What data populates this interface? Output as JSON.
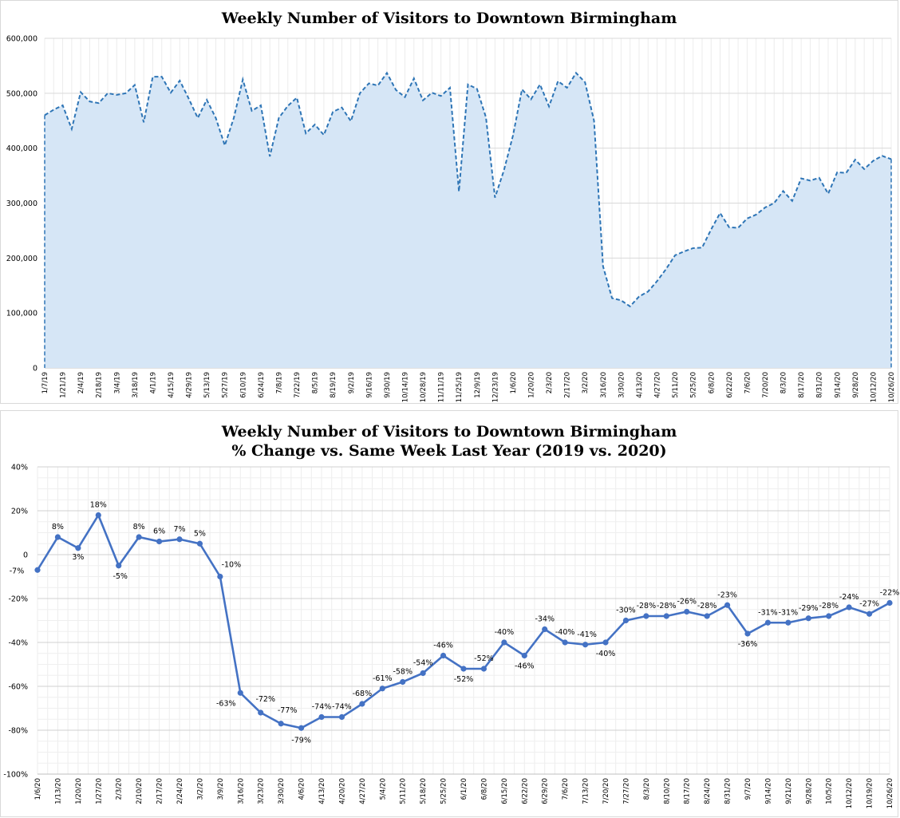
{
  "chart_data": [
    {
      "type": "area",
      "title": "Weekly Number of Visitors to Downtown Birmingham",
      "xlabel": "",
      "ylabel": "",
      "ylim": [
        0,
        600000
      ],
      "yticks": [
        0,
        100000,
        200000,
        300000,
        400000,
        500000,
        600000
      ],
      "ytick_labels": [
        "0",
        "100,000",
        "200,000",
        "300,000",
        "400,000",
        "500,000",
        "600,000"
      ],
      "grid": true,
      "line_style": "dashed",
      "line_color": "#2e75b6",
      "fill_color": "#d6e6f6",
      "x_tick_labels": [
        "1/7/19",
        "1/21/19",
        "2/4/19",
        "2/18/19",
        "3/4/19",
        "3/18/19",
        "4/1/19",
        "4/15/19",
        "4/29/19",
        "5/13/19",
        "5/27/19",
        "6/10/19",
        "6/24/19",
        "7/8/19",
        "7/22/19",
        "8/5/19",
        "8/19/19",
        "9/2/19",
        "9/16/19",
        "9/30/19",
        "10/14/19",
        "10/28/19",
        "11/11/19",
        "11/25/19",
        "12/9/19",
        "12/23/19",
        "1/6/20",
        "1/20/20",
        "2/3/20",
        "2/17/20",
        "3/2/20",
        "3/16/20",
        "3/30/20",
        "4/13/20",
        "4/27/20",
        "5/11/20",
        "5/25/20",
        "6/8/20",
        "6/22/20",
        "7/6/20",
        "7/20/20",
        "8/3/20",
        "8/17/20",
        "8/31/20",
        "9/14/20",
        "9/28/20",
        "10/12/20",
        "10/26/20"
      ],
      "values": [
        460000,
        470000,
        478000,
        435000,
        502000,
        485000,
        482000,
        500000,
        497000,
        500000,
        515000,
        447000,
        530000,
        530000,
        501000,
        523000,
        490000,
        455000,
        488000,
        455000,
        405000,
        455000,
        525000,
        468000,
        478000,
        385000,
        455000,
        477000,
        492000,
        427000,
        443000,
        424000,
        466000,
        474000,
        449000,
        500000,
        518000,
        514000,
        537000,
        506000,
        493000,
        527000,
        487000,
        501000,
        495000,
        510000,
        321000,
        516000,
        508000,
        456000,
        310000,
        360000,
        423000,
        507000,
        489000,
        516000,
        476000,
        522000,
        510000,
        537000,
        520000,
        450000,
        185000,
        127000,
        123000,
        112000,
        130000,
        139000,
        158000,
        180000,
        205000,
        212000,
        218000,
        219000,
        252000,
        282000,
        256000,
        255000,
        272000,
        279000,
        292000,
        300000,
        322000,
        304000,
        345000,
        341000,
        346000,
        317000,
        356000,
        355000,
        379000,
        362000,
        377000,
        386000,
        380000
      ]
    },
    {
      "type": "line",
      "title": "Weekly Number of Visitors to Downtown Birmingham",
      "subtitle": "% Change vs. Same Week Last Year (2019 vs. 2020)",
      "xlabel": "",
      "ylabel": "",
      "ylim": [
        -100,
        40
      ],
      "yticks": [
        -100,
        -80,
        -60,
        -40,
        -20,
        0,
        20,
        40
      ],
      "ytick_labels": [
        "-100%",
        "-80%",
        "-60%",
        "-40%",
        "-20%",
        "0",
        "20%",
        "40%"
      ],
      "grid": true,
      "line_color": "#4472c4",
      "x": [
        "1/6/20",
        "1/13/20",
        "1/20/20",
        "1/27/20",
        "2/3/20",
        "2/10/20",
        "2/17/20",
        "2/24/20",
        "3/2/20",
        "3/9/20",
        "3/16/20",
        "3/23/20",
        "3/30/20",
        "4/6/20",
        "4/13/20",
        "4/20/20",
        "4/27/20",
        "5/4/20",
        "5/11/20",
        "5/18/20",
        "5/25/20",
        "6/1/20",
        "6/8/20",
        "6/15/20",
        "6/22/20",
        "6/29/20",
        "7/6/20",
        "7/13/20",
        "7/20/20",
        "7/27/20",
        "8/3/20",
        "8/10/20",
        "8/17/20",
        "8/24/20",
        "8/31/20",
        "9/7/20",
        "9/14/20",
        "9/21/20",
        "9/28/20",
        "10/5/20",
        "10/12/20",
        "10/19/20",
        "10/26/20"
      ],
      "values": [
        -7,
        8,
        3,
        18,
        -5,
        8,
        6,
        7,
        5,
        -10,
        -63,
        -72,
        -77,
        -79,
        -74,
        -74,
        -68,
        -61,
        -58,
        -54,
        -46,
        -52,
        -52,
        -40,
        -46,
        -34,
        -40,
        -41,
        -40,
        -30,
        -28,
        -28,
        -26,
        -28,
        -23,
        -36,
        -31,
        -31,
        -29,
        -28,
        -24,
        -27,
        -22
      ],
      "data_labels": [
        "-7%",
        "8%",
        "3%",
        "18%",
        "-5%",
        "8%",
        "6%",
        "7%",
        "5%",
        "-10%",
        "-63%",
        "-72%",
        "-77%",
        "-79%",
        "-74%",
        "-74%",
        "-68%",
        "-61%",
        "-58%",
        "-54%",
        "-46%",
        "-52%",
        "-52%",
        "-40%",
        "-46%",
        "-34%",
        "-40%",
        "-41%",
        "-40%",
        "-30%",
        "-28%",
        "-28%",
        "-26%",
        "-28%",
        "-23%",
        "-36%",
        "-31%",
        "-31%",
        "-29%",
        "-28%",
        "-24%",
        "-27%",
        "-22%"
      ]
    }
  ]
}
